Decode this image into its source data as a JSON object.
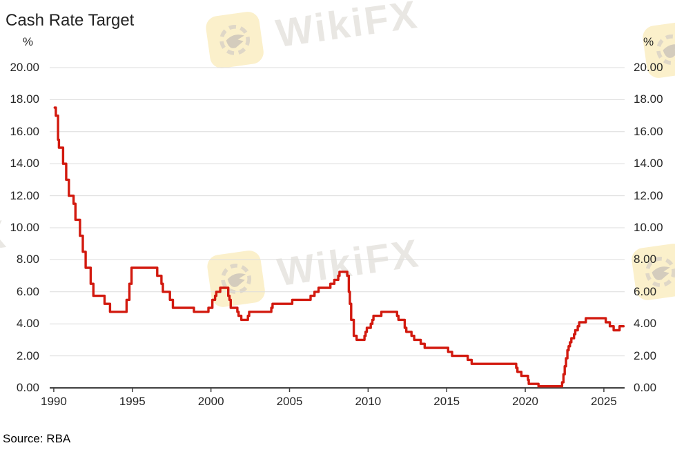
{
  "title": "Cash Rate Target",
  "source": "Source: RBA",
  "watermark": {
    "text": "WikiFX",
    "logo": "wikifx-eagle-icon"
  },
  "chart_data": {
    "type": "line",
    "step": true,
    "title": "Cash Rate Target",
    "xlabel": "",
    "ylabel": "%",
    "unit_left": "%",
    "unit_right": "%",
    "legend": "none",
    "grid": true,
    "xlim": [
      1989.74,
      2026.32
    ],
    "ylim": [
      0,
      20
    ],
    "x_end": 2026.25,
    "x_ticks": [
      "1990",
      "1995",
      "2000",
      "2005",
      "2010",
      "2015",
      "2020",
      "2025"
    ],
    "y_tick_labels": [
      "0.00",
      "2.00",
      "4.00",
      "6.00",
      "8.00",
      "10.00",
      "12.00",
      "14.00",
      "16.00",
      "18.00",
      "20.00"
    ],
    "line_color": "#d2190e",
    "grid_color": "#dcdcdc",
    "axis_color": "#404040",
    "series": [
      {
        "name": "Cash Rate Target (%)",
        "points": [
          [
            1990.06,
            17.5
          ],
          [
            1990.13,
            17.0
          ],
          [
            1990.27,
            15.5
          ],
          [
            1990.33,
            15.0
          ],
          [
            1990.59,
            14.0
          ],
          [
            1990.79,
            13.0
          ],
          [
            1990.96,
            12.0
          ],
          [
            1991.26,
            11.5
          ],
          [
            1991.38,
            10.5
          ],
          [
            1991.67,
            9.5
          ],
          [
            1991.85,
            8.5
          ],
          [
            1992.03,
            7.5
          ],
          [
            1992.35,
            6.5
          ],
          [
            1992.52,
            5.75
          ],
          [
            1993.23,
            5.25
          ],
          [
            1993.58,
            4.75
          ],
          [
            1994.63,
            5.5
          ],
          [
            1994.81,
            6.5
          ],
          [
            1994.95,
            7.5
          ],
          [
            1996.58,
            7.0
          ],
          [
            1996.85,
            6.5
          ],
          [
            1996.94,
            6.0
          ],
          [
            1997.39,
            5.5
          ],
          [
            1997.58,
            5.0
          ],
          [
            1998.92,
            4.75
          ],
          [
            1999.84,
            5.0
          ],
          [
            2000.09,
            5.5
          ],
          [
            2000.26,
            5.75
          ],
          [
            2000.34,
            6.0
          ],
          [
            2000.59,
            6.25
          ],
          [
            2001.1,
            5.75
          ],
          [
            2001.18,
            5.5
          ],
          [
            2001.26,
            5.0
          ],
          [
            2001.68,
            4.75
          ],
          [
            2001.76,
            4.5
          ],
          [
            2001.93,
            4.25
          ],
          [
            2002.35,
            4.5
          ],
          [
            2002.43,
            4.75
          ],
          [
            2003.84,
            5.0
          ],
          [
            2003.92,
            5.25
          ],
          [
            2005.17,
            5.5
          ],
          [
            2006.34,
            5.75
          ],
          [
            2006.59,
            6.0
          ],
          [
            2006.85,
            6.25
          ],
          [
            2007.6,
            6.5
          ],
          [
            2007.85,
            6.75
          ],
          [
            2008.1,
            7.0
          ],
          [
            2008.18,
            7.25
          ],
          [
            2008.67,
            7.0
          ],
          [
            2008.77,
            6.0
          ],
          [
            2008.84,
            5.25
          ],
          [
            2008.92,
            4.25
          ],
          [
            2009.09,
            3.25
          ],
          [
            2009.27,
            3.0
          ],
          [
            2009.77,
            3.25
          ],
          [
            2009.84,
            3.5
          ],
          [
            2009.92,
            3.75
          ],
          [
            2010.17,
            4.0
          ],
          [
            2010.27,
            4.25
          ],
          [
            2010.34,
            4.5
          ],
          [
            2010.84,
            4.75
          ],
          [
            2011.84,
            4.5
          ],
          [
            2011.93,
            4.25
          ],
          [
            2012.33,
            3.75
          ],
          [
            2012.43,
            3.5
          ],
          [
            2012.76,
            3.25
          ],
          [
            2012.93,
            3.0
          ],
          [
            2013.35,
            2.75
          ],
          [
            2013.6,
            2.5
          ],
          [
            2015.09,
            2.25
          ],
          [
            2015.34,
            2.0
          ],
          [
            2016.34,
            1.75
          ],
          [
            2016.59,
            1.5
          ],
          [
            2019.42,
            1.25
          ],
          [
            2019.5,
            1.0
          ],
          [
            2019.75,
            0.75
          ],
          [
            2020.17,
            0.5
          ],
          [
            2020.22,
            0.25
          ],
          [
            2020.84,
            0.1
          ],
          [
            2022.34,
            0.35
          ],
          [
            2022.43,
            0.85
          ],
          [
            2022.51,
            1.35
          ],
          [
            2022.59,
            1.85
          ],
          [
            2022.68,
            2.35
          ],
          [
            2022.76,
            2.6
          ],
          [
            2022.84,
            2.85
          ],
          [
            2022.93,
            3.1
          ],
          [
            2023.1,
            3.35
          ],
          [
            2023.18,
            3.6
          ],
          [
            2023.34,
            3.85
          ],
          [
            2023.43,
            4.1
          ],
          [
            2023.85,
            4.35
          ],
          [
            2025.12,
            4.1
          ],
          [
            2025.38,
            3.85
          ],
          [
            2025.62,
            3.6
          ],
          [
            2026.0,
            3.85
          ]
        ]
      }
    ]
  }
}
